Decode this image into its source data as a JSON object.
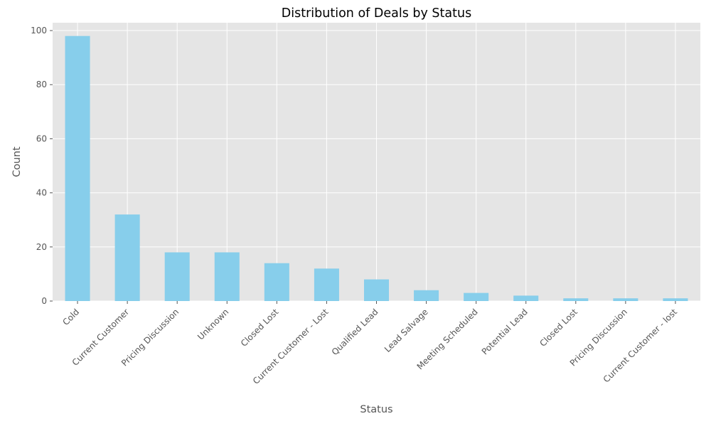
{
  "chart_data": {
    "type": "bar",
    "title": "Distribution of Deals by Status",
    "xlabel": "Status",
    "ylabel": "Count",
    "categories": [
      "Cold",
      "Current Customer",
      "Pricing Discussion",
      "Unknown",
      "Closed Lost",
      "Current Customer - Lost",
      "Qualified Lead",
      "Lead Salvage",
      "Meeting Scheduled",
      "Potential Lead",
      "Closed Lost ",
      "Pricing Discussion ",
      "Current Customer - lost"
    ],
    "values": [
      98,
      32,
      18,
      18,
      14,
      12,
      8,
      4,
      3,
      2,
      1,
      1,
      1
    ],
    "ylim": [
      0,
      102.9
    ],
    "yticks": [
      0,
      20,
      40,
      60,
      80,
      100
    ],
    "grid": true,
    "style": "ggplot",
    "colors": {
      "bar": "#87CEEB",
      "plot_background": "#E5E5E5",
      "grid": "#FFFFFF",
      "text": "#555555",
      "title": "#000000"
    }
  }
}
